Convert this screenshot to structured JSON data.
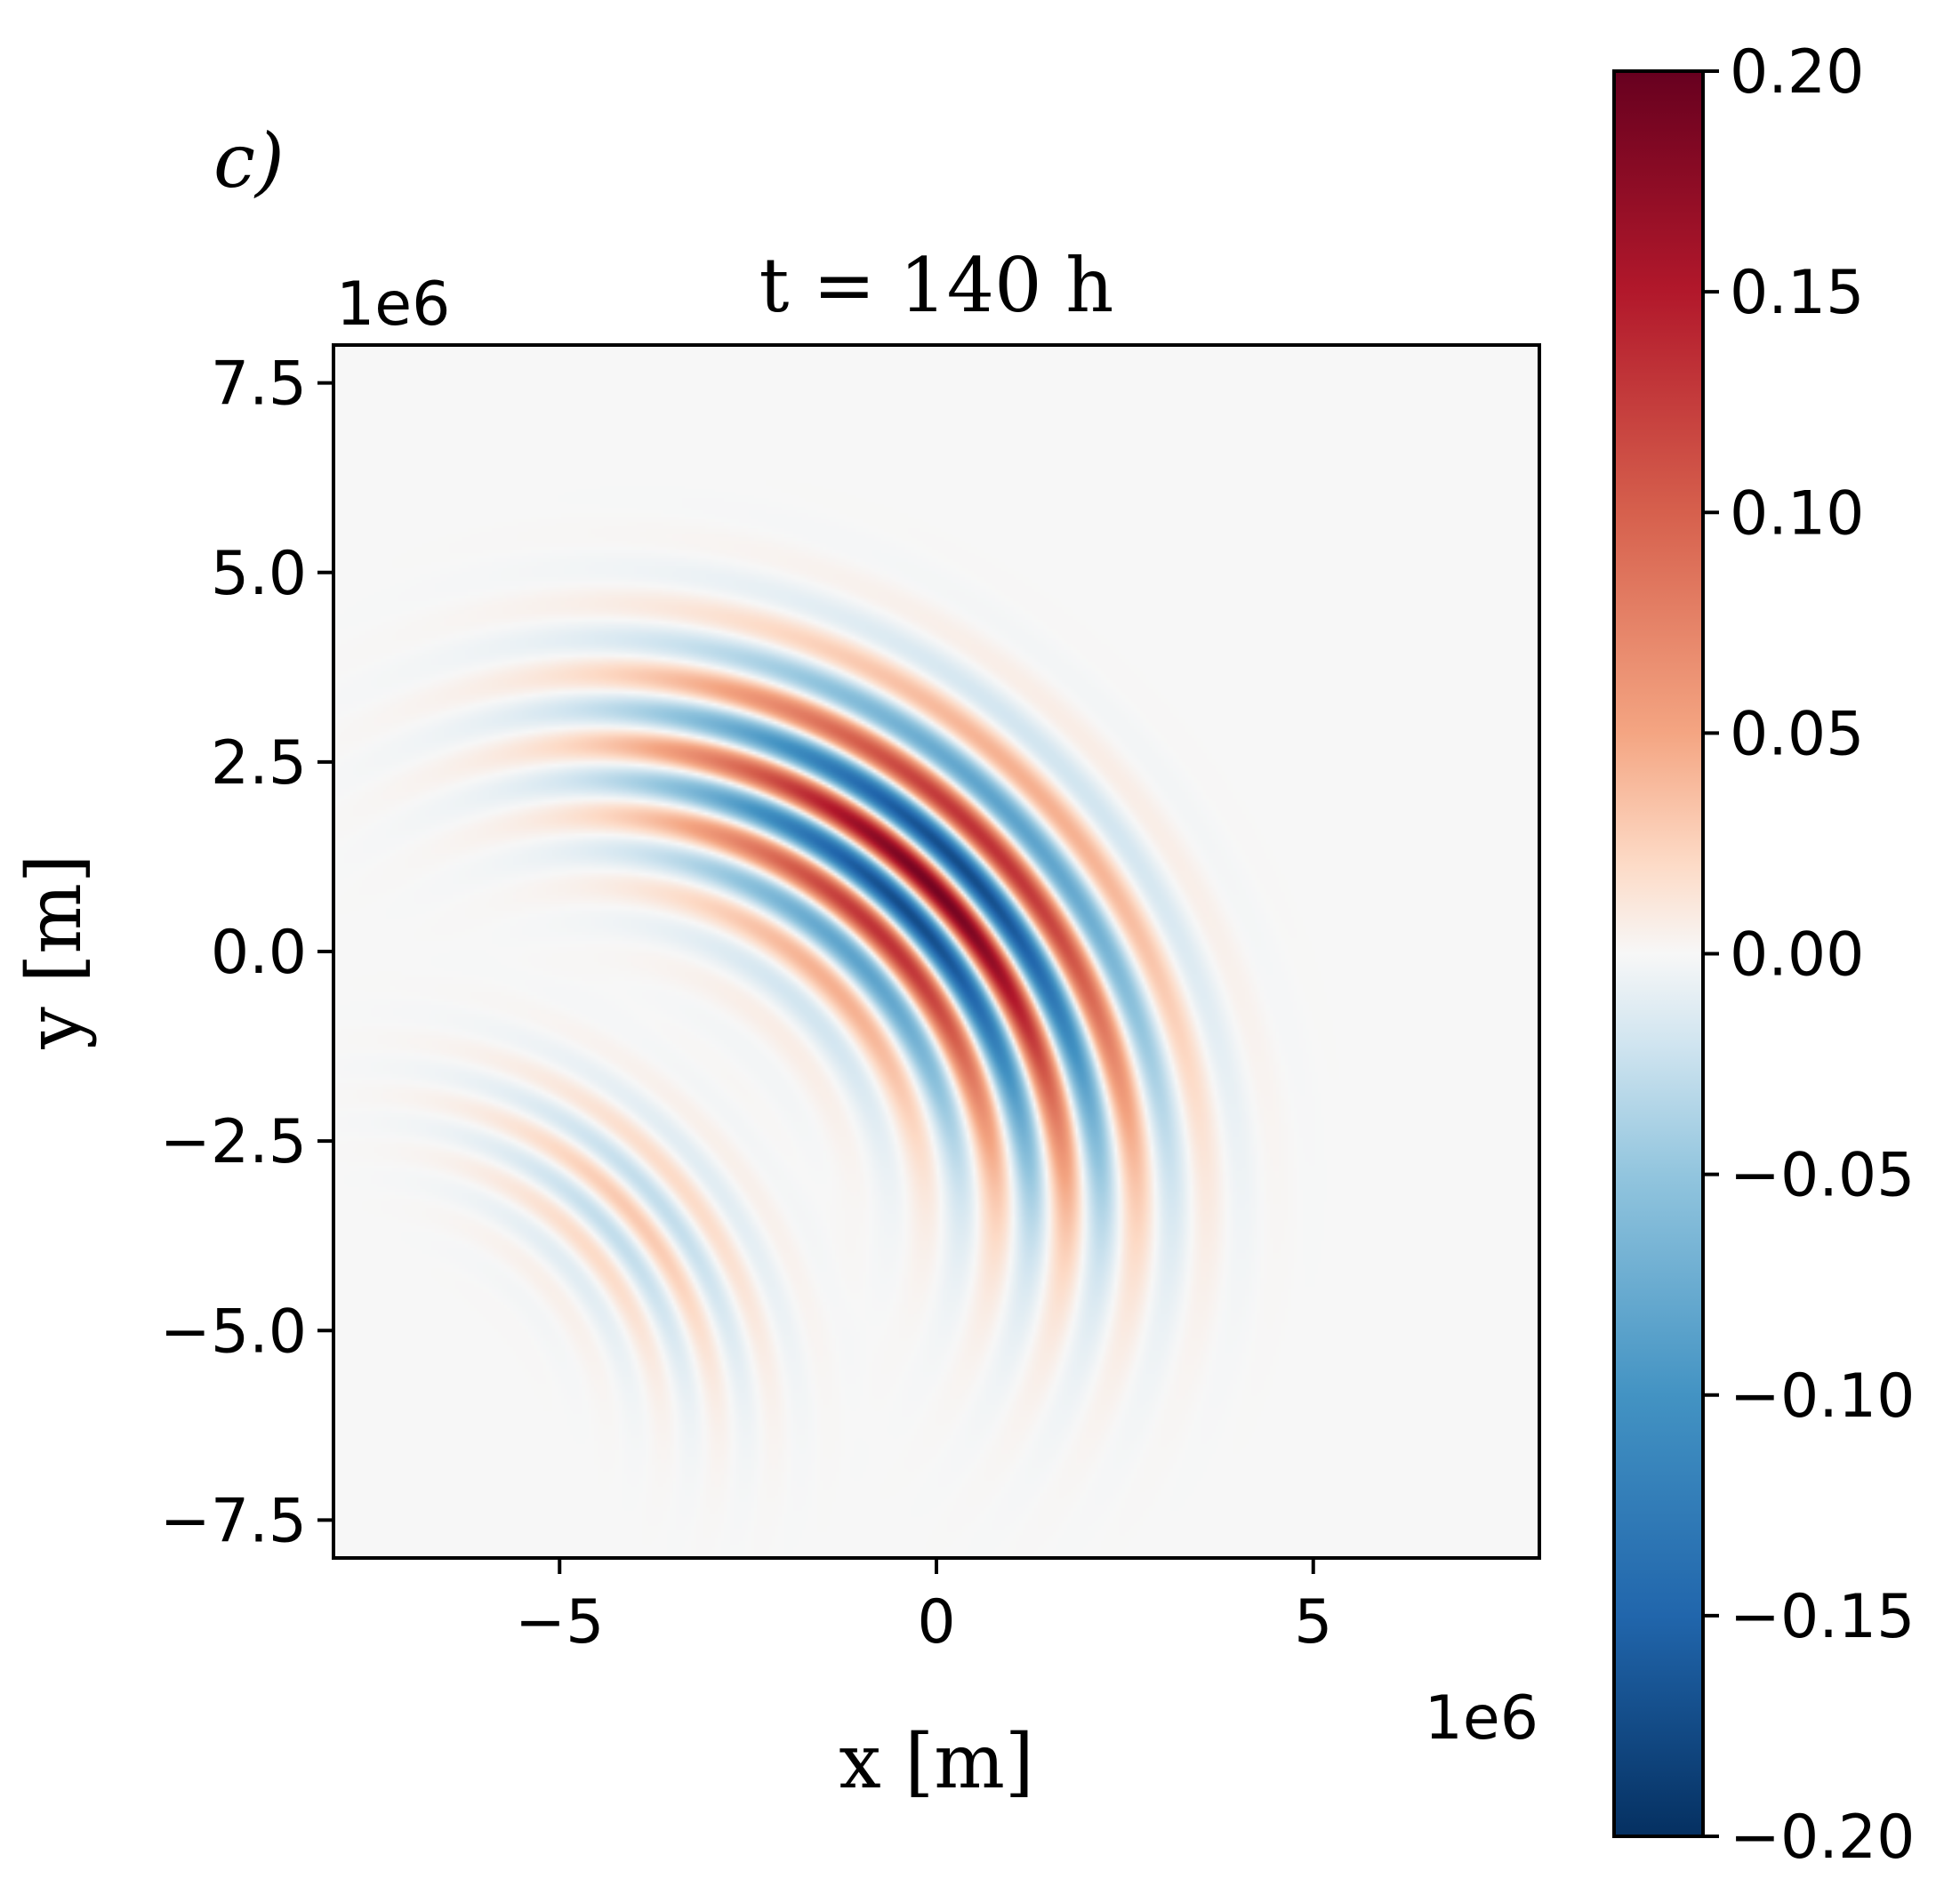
{
  "chart_data": {
    "type": "heatmap",
    "panel_label": "c)",
    "title": "t = 140 h",
    "xlabel": "x [m]",
    "ylabel": "y [m]",
    "x_scale_label": "1e6",
    "y_scale_label": "1e6",
    "xlim": [
      -8,
      8
    ],
    "ylim": [
      -8,
      8
    ],
    "x_ticks": [
      -5,
      0,
      5
    ],
    "x_tick_labels": [
      "−5",
      "0",
      "5"
    ],
    "y_ticks": [
      7.5,
      5.0,
      2.5,
      0.0,
      -2.5,
      -5.0,
      -7.5
    ],
    "y_tick_labels": [
      "7.5",
      "5.0",
      "2.5",
      "0.0",
      "−2.5",
      "−5.0",
      "−7.5"
    ],
    "grid": false,
    "colorbar": {
      "colormap": "RdBu_r",
      "vmin": -0.2,
      "vmax": 0.2,
      "ticks": [
        0.2,
        0.15,
        0.1,
        0.05,
        0.0,
        -0.05,
        -0.1,
        -0.15,
        -0.2
      ],
      "tick_labels": [
        "0.20",
        "0.15",
        "0.10",
        "0.05",
        "0.00",
        "−0.05",
        "−0.10",
        "−0.15",
        "−0.20"
      ],
      "stops": [
        {
          "value": 0.2,
          "color": "#67001f"
        },
        {
          "value": 0.15,
          "color": "#b2182b"
        },
        {
          "value": 0.1,
          "color": "#d6604d"
        },
        {
          "value": 0.05,
          "color": "#f4a582"
        },
        {
          "value": 0.02,
          "color": "#fddbc7"
        },
        {
          "value": 0.0,
          "color": "#f7f7f7"
        },
        {
          "value": -0.02,
          "color": "#d1e5f0"
        },
        {
          "value": -0.05,
          "color": "#92c5de"
        },
        {
          "value": -0.1,
          "color": "#4393c3"
        },
        {
          "value": -0.15,
          "color": "#2166ac"
        },
        {
          "value": -0.2,
          "color": "#053061"
        }
      ]
    },
    "field": {
      "background_value": 0.0,
      "wave_packets": [
        {
          "center_x": 0.0,
          "center_y": 0.8,
          "arc_center_x": -4.5,
          "arc_center_y": -3.5,
          "amplitude": 0.19,
          "wavelength": 0.95,
          "radial_spread": 1.1,
          "angular_spread": 0.42
        },
        {
          "center_x": -4.0,
          "center_y": -3.5,
          "arc_center_x": -7.5,
          "arc_center_y": -6.5,
          "amplitude": 0.03,
          "wavelength": 0.75,
          "radial_spread": 0.8,
          "angular_spread": 0.35
        }
      ]
    }
  }
}
